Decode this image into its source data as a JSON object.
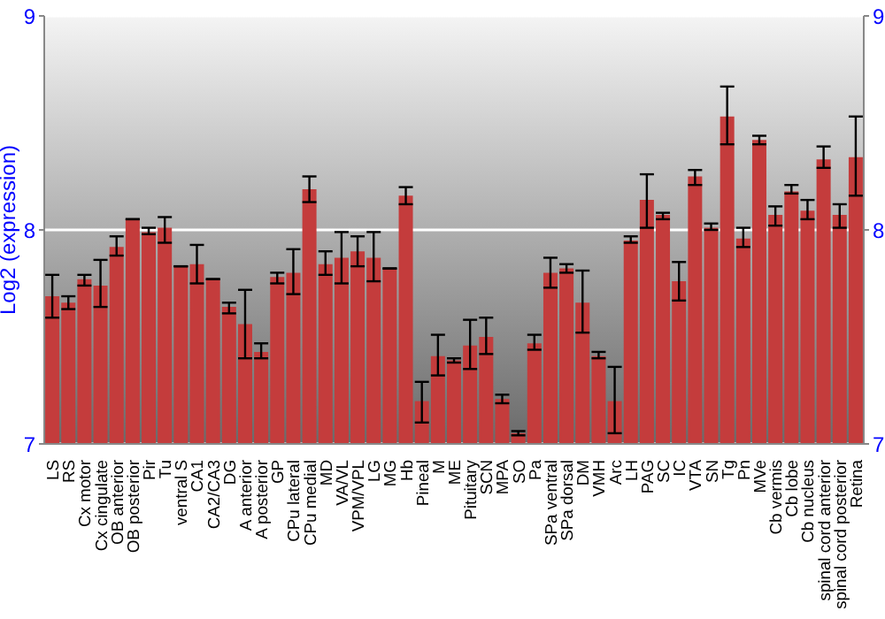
{
  "chart_data": {
    "type": "bar",
    "ylabel": "Log2 (expression)",
    "categories": [
      "LS",
      "RS",
      "Cx motor",
      "Cx cingulate",
      "OB anterior",
      "OB posterior",
      "Pir",
      "Tu",
      "ventral S",
      "CA1",
      "CA2/CA3",
      "DG",
      "A anterior",
      "A posterior",
      "GP",
      "CPu lateral",
      "CPu medial",
      "MD",
      "VA/VL",
      "VPM/VPL",
      "LG",
      "MG",
      "Hb",
      "Pineal",
      "M",
      "ME",
      "Pituitary",
      "SCN",
      "MPA",
      "SO",
      "Pa",
      "SPa ventral",
      "SPa dorsal",
      "DM",
      "VMH",
      "Arc",
      "LH",
      "PAG",
      "SC",
      "IC",
      "VTA",
      "SN",
      "Tg",
      "Pn",
      "MVe",
      "Cb vermis",
      "Cb lobe",
      "Cb nucleus",
      "spinal cord anterior",
      "spinal cord posterior",
      "Retina"
    ],
    "values": [
      7.69,
      7.66,
      7.77,
      7.74,
      7.92,
      8.05,
      7.99,
      8.01,
      7.83,
      7.84,
      7.77,
      7.64,
      7.56,
      7.43,
      7.78,
      7.8,
      8.19,
      7.84,
      7.87,
      7.9,
      7.87,
      7.82,
      8.16,
      7.2,
      7.41,
      7.39,
      7.46,
      7.5,
      7.21,
      7.05,
      7.47,
      7.8,
      7.82,
      7.66,
      7.41,
      7.2,
      7.95,
      8.14,
      8.07,
      7.76,
      8.25,
      8.01,
      8.53,
      7.96,
      8.42,
      8.07,
      8.18,
      8.09,
      8.33,
      8.07,
      8.34
    ],
    "errors": [
      [
        7.59,
        7.79
      ],
      [
        7.63,
        7.69
      ],
      [
        7.74,
        7.79
      ],
      [
        7.64,
        7.86
      ],
      [
        7.88,
        7.97
      ],
      null,
      [
        7.98,
        8.01
      ],
      [
        7.94,
        8.06
      ],
      null,
      [
        7.75,
        7.93
      ],
      null,
      [
        7.61,
        7.66
      ],
      [
        7.4,
        7.72
      ],
      [
        7.4,
        7.47
      ],
      [
        7.75,
        7.8
      ],
      [
        7.7,
        7.91
      ],
      [
        8.13,
        8.25
      ],
      [
        7.79,
        7.9
      ],
      [
        7.75,
        7.99
      ],
      [
        7.83,
        7.97
      ],
      [
        7.76,
        7.99
      ],
      null,
      [
        8.12,
        8.2
      ],
      [
        7.1,
        7.29
      ],
      [
        7.32,
        7.51
      ],
      [
        7.38,
        7.4
      ],
      [
        7.35,
        7.58
      ],
      [
        7.42,
        7.59
      ],
      [
        7.19,
        7.23
      ],
      [
        7.04,
        7.06
      ],
      [
        7.44,
        7.51
      ],
      [
        7.73,
        7.87
      ],
      [
        7.8,
        7.84
      ],
      [
        7.52,
        7.81
      ],
      [
        7.4,
        7.43
      ],
      [
        7.05,
        7.36
      ],
      [
        7.94,
        7.97
      ],
      [
        8.01,
        8.26
      ],
      [
        8.05,
        8.08
      ],
      [
        7.67,
        7.85
      ],
      [
        8.21,
        8.28
      ],
      [
        8,
        8.03
      ],
      [
        8.4,
        8.67
      ],
      [
        7.92,
        8.01
      ],
      [
        8.4,
        8.44
      ],
      [
        8.02,
        8.11
      ],
      [
        8.17,
        8.21
      ],
      [
        8.05,
        8.14
      ],
      [
        8.29,
        8.39
      ],
      [
        8.01,
        8.12
      ],
      [
        8.16,
        8.53
      ]
    ],
    "color": "#c43c3c",
    "ylim": [
      7,
      9
    ],
    "yticks": [
      7,
      8,
      9
    ],
    "y2lim": [
      7,
      9
    ],
    "y2ticks": [
      7,
      8,
      9
    ],
    "grid": "y"
  }
}
